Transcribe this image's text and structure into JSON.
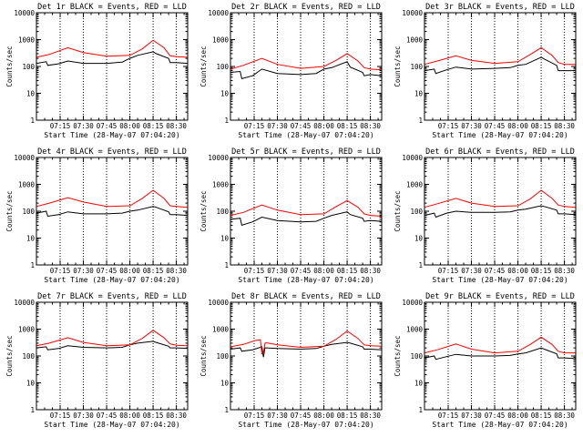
{
  "colors": {
    "events": "#000000",
    "lld": "#ff0000",
    "background": "#ffffff"
  },
  "chart_data": {
    "type": "line",
    "layout": "3x3 grid of log-scale count-rate panels",
    "ylabel": "Counts/sec",
    "xlabel": "Start Time (28-May-07 07:04:20)",
    "x_tick_labels": [
      "07:15",
      "07:30",
      "07:45",
      "08:00",
      "08:15",
      "08:30"
    ],
    "x_ticks_min": [
      15,
      30,
      45,
      60,
      75,
      90
    ],
    "xlim_min": [
      -0.3,
      97.3
    ],
    "dotted_lines_min": [
      15,
      30,
      45,
      60,
      75,
      90
    ],
    "y_tick_labels": [
      "1",
      "10",
      "100",
      "1000",
      "10000"
    ],
    "ylim": [
      1,
      10000
    ],
    "yscale": "log",
    "legend": [
      {
        "name": "Events",
        "color": "black"
      },
      {
        "name": "LLD",
        "color": "red"
      }
    ],
    "panels": [
      {
        "title": "Det 1r BLACK = Events, RED = LLD",
        "series": [
          {
            "name": "Events",
            "x_min": [
              -0.3,
              6,
              7,
              14,
              20,
              30,
              45,
              55,
              60,
              65,
              75,
              77,
              85,
              86,
              90,
              97.3
            ],
            "y": [
              130,
              150,
              110,
              125,
              160,
              130,
              130,
              145,
              200,
              260,
              350,
              300,
              200,
              140,
              140,
              130
            ]
          },
          {
            "name": "LLD",
            "x_min": [
              -0.3,
              8,
              20,
              30,
              45,
              60,
              68,
              75,
              82,
              86,
              90,
              97.3
            ],
            "y": [
              220,
              280,
              500,
              330,
              240,
              260,
              450,
              950,
              500,
              250,
              230,
              220
            ]
          }
        ]
      },
      {
        "title": "Det 2r BLACK = Events, RED = LLD",
        "series": [
          {
            "name": "Events",
            "x_min": [
              -0.3,
              6,
              7,
              14,
              20,
              30,
              45,
              55,
              60,
              65,
              75,
              77,
              85,
              86,
              90,
              97.3
            ],
            "y": [
              60,
              65,
              35,
              45,
              80,
              55,
              50,
              55,
              80,
              90,
              150,
              95,
              60,
              45,
              50,
              45
            ]
          },
          {
            "name": "LLD",
            "x_min": [
              -0.3,
              8,
              20,
              30,
              45,
              60,
              68,
              75,
              82,
              86,
              90,
              97.3
            ],
            "y": [
              80,
              110,
              200,
              120,
              85,
              100,
              170,
              300,
              160,
              90,
              80,
              75
            ]
          }
        ]
      },
      {
        "title": "Det 3r BLACK = Events, RED = LLD",
        "series": [
          {
            "name": "Events",
            "x_min": [
              -0.3,
              6,
              7,
              14,
              20,
              30,
              45,
              55,
              60,
              65,
              75,
              77,
              85,
              86,
              90,
              97.3
            ],
            "y": [
              70,
              80,
              55,
              75,
              95,
              80,
              85,
              90,
              110,
              120,
              220,
              190,
              110,
              70,
              70,
              70
            ]
          },
          {
            "name": "LLD",
            "x_min": [
              -0.3,
              8,
              20,
              30,
              45,
              60,
              68,
              75,
              82,
              86,
              90,
              97.3
            ],
            "y": [
              120,
              160,
              250,
              170,
              130,
              150,
              280,
              500,
              260,
              140,
              120,
              120
            ]
          }
        ]
      },
      {
        "title": "Det 4r BLACK = Events, RED = LLD",
        "series": [
          {
            "name": "Events",
            "x_min": [
              -0.3,
              6,
              7,
              14,
              20,
              30,
              45,
              55,
              60,
              65,
              75,
              77,
              85,
              86,
              90,
              97.3
            ],
            "y": [
              85,
              100,
              65,
              75,
              95,
              80,
              80,
              85,
              100,
              110,
              150,
              140,
              95,
              75,
              75,
              70
            ]
          },
          {
            "name": "LLD",
            "x_min": [
              -0.3,
              8,
              20,
              30,
              45,
              60,
              68,
              75,
              82,
              86,
              90,
              97.3
            ],
            "y": [
              150,
              200,
              320,
              220,
              150,
              160,
              300,
              600,
              300,
              160,
              150,
              140
            ]
          }
        ]
      },
      {
        "title": "Det 5r BLACK = Events, RED = LLD",
        "series": [
          {
            "name": "Events",
            "x_min": [
              -0.3,
              6,
              7,
              14,
              20,
              30,
              45,
              55,
              60,
              65,
              75,
              77,
              85,
              86,
              90,
              97.3
            ],
            "y": [
              50,
              55,
              30,
              40,
              60,
              45,
              40,
              42,
              55,
              70,
              95,
              75,
              55,
              42,
              45,
              42
            ]
          },
          {
            "name": "LLD",
            "x_min": [
              -0.3,
              8,
              20,
              30,
              45,
              60,
              68,
              75,
              82,
              86,
              90,
              97.3
            ],
            "y": [
              70,
              90,
              170,
              110,
              75,
              80,
              150,
              250,
              140,
              80,
              70,
              65
            ]
          }
        ]
      },
      {
        "title": "Det 6r BLACK = Events, RED = LLD",
        "series": [
          {
            "name": "Events",
            "x_min": [
              -0.3,
              6,
              7,
              14,
              20,
              30,
              45,
              55,
              60,
              65,
              75,
              77,
              85,
              86,
              90,
              97.3
            ],
            "y": [
              70,
              85,
              60,
              85,
              100,
              90,
              90,
              95,
              110,
              120,
              160,
              150,
              110,
              80,
              80,
              75
            ]
          },
          {
            "name": "LLD",
            "x_min": [
              -0.3,
              8,
              20,
              30,
              45,
              60,
              68,
              75,
              82,
              86,
              90,
              97.3
            ],
            "y": [
              140,
              190,
              300,
              200,
              150,
              160,
              290,
              600,
              300,
              170,
              150,
              140
            ]
          }
        ]
      },
      {
        "title": "Det 7r BLACK = Events, RED = LLD",
        "series": [
          {
            "name": "Events",
            "x_min": [
              -0.3,
              6,
              7,
              14,
              20,
              30,
              45,
              55,
              60,
              65,
              75,
              77,
              85,
              86,
              90,
              97.3
            ],
            "y": [
              200,
              220,
              170,
              190,
              240,
              210,
              200,
              210,
              260,
              300,
              350,
              320,
              230,
              200,
              200,
              190
            ]
          },
          {
            "name": "LLD",
            "x_min": [
              -0.3,
              8,
              20,
              30,
              45,
              60,
              68,
              75,
              82,
              86,
              90,
              97.3
            ],
            "y": [
              240,
              300,
              480,
              320,
              240,
              260,
              450,
              900,
              480,
              280,
              250,
              240
            ]
          }
        ]
      },
      {
        "title": "Det 8r BLACK = Events, RED = LLD",
        "series": [
          {
            "name": "Events",
            "x_min": [
              -0.3,
              6,
              7,
              14,
              20,
              21,
              22,
              23,
              30,
              45,
              55,
              60,
              65,
              75,
              77,
              85,
              86,
              90,
              97.3
            ],
            "y": [
              180,
              200,
              150,
              170,
              220,
              90,
              200,
              200,
              190,
              180,
              190,
              230,
              270,
              320,
              300,
              220,
              180,
              180,
              170
            ]
          },
          {
            "name": "LLD",
            "x_min": [
              -0.3,
              8,
              16,
              19,
              20,
              21,
              22,
              23,
              30,
              45,
              60,
              68,
              75,
              82,
              86,
              90,
              97.3
            ],
            "y": [
              220,
              270,
              380,
              400,
              120,
              130,
              300,
              310,
              260,
              210,
              230,
              420,
              850,
              450,
              260,
              240,
              230
            ]
          }
        ]
      },
      {
        "title": "Det 9r BLACK = Events, RED = LLD",
        "series": [
          {
            "name": "Events",
            "x_min": [
              -0.3,
              6,
              7,
              14,
              20,
              30,
              45,
              55,
              60,
              65,
              75,
              77,
              85,
              86,
              90,
              97.3
            ],
            "y": [
              85,
              100,
              75,
              95,
              115,
              100,
              100,
              105,
              120,
              130,
              200,
              180,
              120,
              85,
              85,
              80
            ]
          },
          {
            "name": "LLD",
            "x_min": [
              -0.3,
              8,
              20,
              30,
              45,
              60,
              68,
              75,
              82,
              86,
              90,
              97.3
            ],
            "y": [
              130,
              170,
              280,
              180,
              130,
              150,
              270,
              500,
              270,
              150,
              130,
              130
            ]
          }
        ]
      }
    ]
  }
}
